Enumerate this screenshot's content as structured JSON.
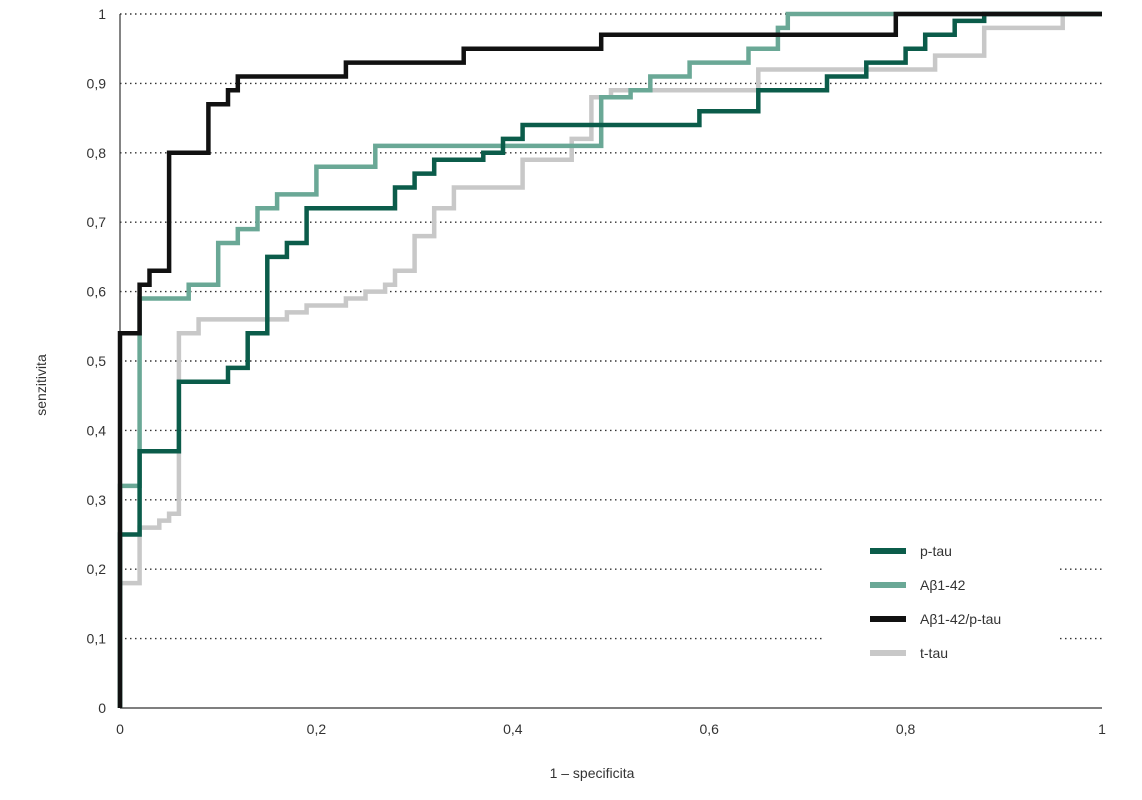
{
  "chart_data": {
    "type": "line",
    "title": "",
    "xlabel": "1 – specificita",
    "ylabel": "senzitivita",
    "xlim": [
      0,
      1
    ],
    "ylim": [
      0,
      1
    ],
    "grid": "horizontal dotted",
    "legend_position": "bottom-right",
    "x_ticks": [
      "0",
      "0,2",
      "0,4",
      "0,6",
      "0,8",
      "1"
    ],
    "x_tick_values": [
      0,
      0.2,
      0.4,
      0.6,
      0.8,
      1
    ],
    "y_ticks": [
      "0",
      "0,1",
      "0,2",
      "0,3",
      "0,4",
      "0,5",
      "0,6",
      "0,7",
      "0,8",
      "0,9",
      "1"
    ],
    "y_tick_values": [
      0,
      0.1,
      0.2,
      0.3,
      0.4,
      0.5,
      0.6,
      0.7,
      0.8,
      0.9,
      1
    ],
    "series": [
      {
        "name": "p-tau",
        "color": "#0b5c4a",
        "points": [
          [
            0,
            0
          ],
          [
            0,
            0.25
          ],
          [
            0.02,
            0.25
          ],
          [
            0.02,
            0.37
          ],
          [
            0.06,
            0.37
          ],
          [
            0.06,
            0.47
          ],
          [
            0.11,
            0.47
          ],
          [
            0.11,
            0.49
          ],
          [
            0.13,
            0.49
          ],
          [
            0.13,
            0.54
          ],
          [
            0.15,
            0.54
          ],
          [
            0.15,
            0.65
          ],
          [
            0.17,
            0.65
          ],
          [
            0.17,
            0.67
          ],
          [
            0.19,
            0.67
          ],
          [
            0.19,
            0.72
          ],
          [
            0.28,
            0.72
          ],
          [
            0.28,
            0.75
          ],
          [
            0.3,
            0.75
          ],
          [
            0.3,
            0.77
          ],
          [
            0.32,
            0.77
          ],
          [
            0.32,
            0.79
          ],
          [
            0.37,
            0.79
          ],
          [
            0.37,
            0.8
          ],
          [
            0.39,
            0.8
          ],
          [
            0.39,
            0.82
          ],
          [
            0.41,
            0.82
          ],
          [
            0.41,
            0.84
          ],
          [
            0.59,
            0.84
          ],
          [
            0.59,
            0.86
          ],
          [
            0.65,
            0.86
          ],
          [
            0.65,
            0.89
          ],
          [
            0.72,
            0.89
          ],
          [
            0.72,
            0.91
          ],
          [
            0.76,
            0.91
          ],
          [
            0.76,
            0.93
          ],
          [
            0.8,
            0.93
          ],
          [
            0.8,
            0.95
          ],
          [
            0.82,
            0.95
          ],
          [
            0.82,
            0.97
          ],
          [
            0.85,
            0.97
          ],
          [
            0.85,
            0.99
          ],
          [
            0.88,
            0.99
          ],
          [
            0.88,
            1
          ],
          [
            1,
            1
          ]
        ]
      },
      {
        "name": "Aβ1-42",
        "color": "#6aa896",
        "points": [
          [
            0,
            0
          ],
          [
            0,
            0.32
          ],
          [
            0.02,
            0.32
          ],
          [
            0.02,
            0.59
          ],
          [
            0.07,
            0.59
          ],
          [
            0.07,
            0.61
          ],
          [
            0.1,
            0.61
          ],
          [
            0.1,
            0.67
          ],
          [
            0.12,
            0.67
          ],
          [
            0.12,
            0.69
          ],
          [
            0.14,
            0.69
          ],
          [
            0.14,
            0.72
          ],
          [
            0.16,
            0.72
          ],
          [
            0.16,
            0.74
          ],
          [
            0.2,
            0.74
          ],
          [
            0.2,
            0.78
          ],
          [
            0.26,
            0.78
          ],
          [
            0.26,
            0.81
          ],
          [
            0.49,
            0.81
          ],
          [
            0.49,
            0.88
          ],
          [
            0.52,
            0.88
          ],
          [
            0.52,
            0.89
          ],
          [
            0.54,
            0.89
          ],
          [
            0.54,
            0.91
          ],
          [
            0.58,
            0.91
          ],
          [
            0.58,
            0.93
          ],
          [
            0.64,
            0.93
          ],
          [
            0.64,
            0.95
          ],
          [
            0.67,
            0.95
          ],
          [
            0.67,
            0.98
          ],
          [
            0.68,
            0.98
          ],
          [
            0.68,
            1
          ],
          [
            1,
            1
          ]
        ]
      },
      {
        "name": "Aβ1-42/p-tau",
        "color": "#111111",
        "points": [
          [
            0,
            0
          ],
          [
            0,
            0.18
          ],
          [
            0,
            0.54
          ],
          [
            0.02,
            0.54
          ],
          [
            0.02,
            0.61
          ],
          [
            0.03,
            0.61
          ],
          [
            0.03,
            0.63
          ],
          [
            0.05,
            0.63
          ],
          [
            0.05,
            0.8
          ],
          [
            0.09,
            0.8
          ],
          [
            0.09,
            0.87
          ],
          [
            0.11,
            0.87
          ],
          [
            0.11,
            0.89
          ],
          [
            0.12,
            0.89
          ],
          [
            0.12,
            0.91
          ],
          [
            0.23,
            0.91
          ],
          [
            0.23,
            0.93
          ],
          [
            0.35,
            0.93
          ],
          [
            0.35,
            0.95
          ],
          [
            0.49,
            0.95
          ],
          [
            0.49,
            0.97
          ],
          [
            0.79,
            0.97
          ],
          [
            0.79,
            1
          ],
          [
            1,
            1
          ]
        ]
      },
      {
        "name": "t-tau",
        "color": "#c8c8c8",
        "points": [
          [
            0,
            0
          ],
          [
            0,
            0.18
          ],
          [
            0.02,
            0.18
          ],
          [
            0.02,
            0.26
          ],
          [
            0.04,
            0.26
          ],
          [
            0.04,
            0.27
          ],
          [
            0.05,
            0.27
          ],
          [
            0.05,
            0.28
          ],
          [
            0.06,
            0.28
          ],
          [
            0.06,
            0.54
          ],
          [
            0.08,
            0.54
          ],
          [
            0.08,
            0.56
          ],
          [
            0.17,
            0.56
          ],
          [
            0.17,
            0.57
          ],
          [
            0.19,
            0.57
          ],
          [
            0.19,
            0.58
          ],
          [
            0.23,
            0.58
          ],
          [
            0.23,
            0.59
          ],
          [
            0.25,
            0.59
          ],
          [
            0.25,
            0.6
          ],
          [
            0.27,
            0.6
          ],
          [
            0.27,
            0.61
          ],
          [
            0.28,
            0.61
          ],
          [
            0.28,
            0.63
          ],
          [
            0.3,
            0.63
          ],
          [
            0.3,
            0.68
          ],
          [
            0.32,
            0.68
          ],
          [
            0.32,
            0.72
          ],
          [
            0.34,
            0.72
          ],
          [
            0.34,
            0.75
          ],
          [
            0.41,
            0.75
          ],
          [
            0.41,
            0.79
          ],
          [
            0.46,
            0.79
          ],
          [
            0.46,
            0.82
          ],
          [
            0.48,
            0.82
          ],
          [
            0.48,
            0.88
          ],
          [
            0.5,
            0.88
          ],
          [
            0.5,
            0.89
          ],
          [
            0.65,
            0.89
          ],
          [
            0.65,
            0.92
          ],
          [
            0.83,
            0.92
          ],
          [
            0.83,
            0.94
          ],
          [
            0.88,
            0.94
          ],
          [
            0.88,
            0.98
          ],
          [
            0.96,
            0.98
          ],
          [
            0.96,
            1
          ],
          [
            1,
            1
          ]
        ]
      }
    ]
  }
}
